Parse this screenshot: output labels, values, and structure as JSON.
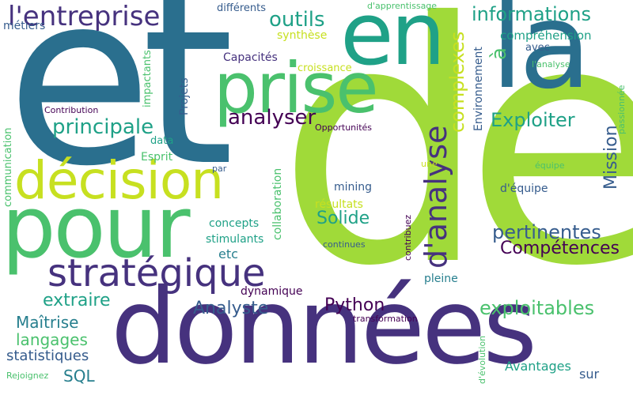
{
  "palette": {
    "background": "#ffffff",
    "lime": "#a0da39",
    "green": "#4ac16d",
    "teal": "#1fa187",
    "cyan": "#277f8e",
    "blue": "#365c8d",
    "indigo": "#46327e",
    "purple": "#440154",
    "yellow": "#c7e020"
  },
  "words": [
    {
      "text": "et"
    },
    {
      "text": "de"
    },
    {
      "text": "données"
    },
    {
      "text": "pour"
    },
    {
      "text": "en"
    },
    {
      "text": "la"
    },
    {
      "text": "prise"
    },
    {
      "text": "décision"
    },
    {
      "text": "stratégique"
    },
    {
      "text": "l'entreprise"
    },
    {
      "text": "d'analyse"
    },
    {
      "text": "principale"
    },
    {
      "text": "outils"
    },
    {
      "text": "analyser"
    },
    {
      "text": "informations"
    },
    {
      "text": "complexes"
    },
    {
      "text": "à"
    },
    {
      "text": "Exploiter"
    },
    {
      "text": "Mission"
    },
    {
      "text": "pertinentes"
    },
    {
      "text": "Compétences"
    },
    {
      "text": "exploitables"
    },
    {
      "text": "extraire"
    },
    {
      "text": "Analyste"
    },
    {
      "text": "Python"
    },
    {
      "text": "Solide"
    },
    {
      "text": "Maîtrise"
    },
    {
      "text": "langages"
    },
    {
      "text": "SQL"
    },
    {
      "text": "statistiques"
    },
    {
      "text": "Avantages"
    },
    {
      "text": "sur"
    },
    {
      "text": "différents"
    },
    {
      "text": "métiers"
    },
    {
      "text": "d'apprentissage"
    },
    {
      "text": "compréhension"
    },
    {
      "text": "avec"
    },
    {
      "text": "l'analyse"
    },
    {
      "text": "synthèse"
    },
    {
      "text": "croissance"
    },
    {
      "text": "Capacités"
    },
    {
      "text": "impactants"
    },
    {
      "text": "Projets"
    },
    {
      "text": "communication"
    },
    {
      "text": "Contribution"
    },
    {
      "text": "Opportunités"
    },
    {
      "text": "data"
    },
    {
      "text": "Esprit"
    },
    {
      "text": "par"
    },
    {
      "text": "collaboration"
    },
    {
      "text": "Environnement"
    },
    {
      "text": "passionnée"
    },
    {
      "text": "équipe"
    },
    {
      "text": "une"
    },
    {
      "text": "d'équipe"
    },
    {
      "text": "mining"
    },
    {
      "text": "résultats"
    },
    {
      "text": "concepts"
    },
    {
      "text": "stimulants"
    },
    {
      "text": "etc"
    },
    {
      "text": "dynamique"
    },
    {
      "text": "contribuez"
    },
    {
      "text": "continues"
    },
    {
      "text": "pleine"
    },
    {
      "text": "transformation"
    },
    {
      "text": "d'évolution"
    },
    {
      "text": "Rejoignez"
    }
  ]
}
